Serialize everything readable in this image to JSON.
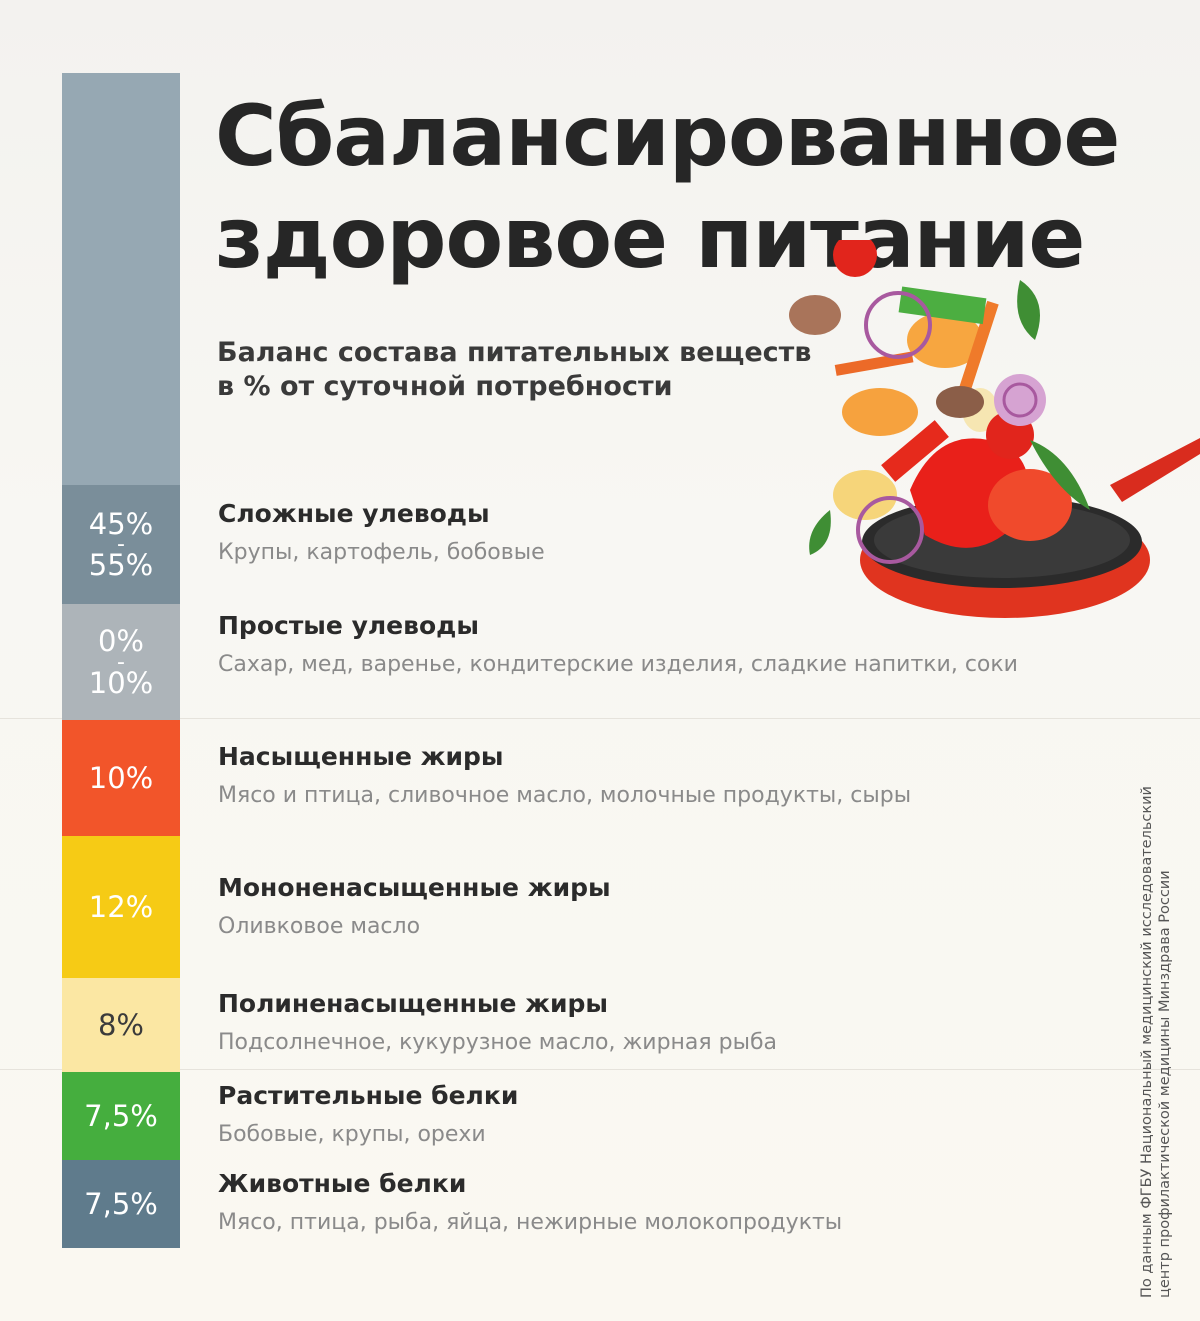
{
  "title_line1": "Сбалансированное",
  "title_line2": "здоровое питание",
  "subtitle_line1": "Баланс состава питательных веществ",
  "subtitle_line2": "в % от суточной потребности",
  "source_line1": "По данным ФГБУ Национальный медицинский исследовательский",
  "source_line2": "центр профилактической медицины Минздрава России",
  "bar_colors": {
    "top_filler": "#96a8b3",
    "complex_carbs": "#7a8e9a",
    "simple_carbs": "#adb4b9",
    "saturated_fats": "#f2552a",
    "mono_fats": "#f6cb15",
    "poly_fats": "#fbe7a3",
    "plant_proteins": "#45ae3e",
    "animal_proteins": "#5f7b8c"
  },
  "nutrients": [
    {
      "pct_top": "45%",
      "pct_sep": "-",
      "pct_bottom": "55%",
      "name": "Сложные улеводы",
      "desc": "Крупы, картофель, бобовые"
    },
    {
      "pct_top": "0%",
      "pct_sep": "-",
      "pct_bottom": "10%",
      "name": "Простые улеводы",
      "desc": "Сахар, мед, варенье, кондитерские изделия, сладкие напитки, соки"
    },
    {
      "pct": "10%",
      "name": "Насыщенные жиры",
      "desc": "Мясо и птица, сливочное масло, молочные продукты, сыры"
    },
    {
      "pct": "12%",
      "name": "Мононенасыщенные жиры",
      "desc": "Оливковое масло"
    },
    {
      "pct": "8%",
      "name": "Полиненасыщенные жиры",
      "desc": "Подсолнечное, кукурузное масло, жирная рыба"
    },
    {
      "pct": "7,5%",
      "name": "Растительные белки",
      "desc": "Бобовые, крупы, орехи"
    },
    {
      "pct": "7,5%",
      "name": "Животные белки",
      "desc": "Мясо, птица, рыба, яйца, нежирные молокопродукты"
    }
  ],
  "illustration_icon": "frying-pan-vegetables-icon"
}
